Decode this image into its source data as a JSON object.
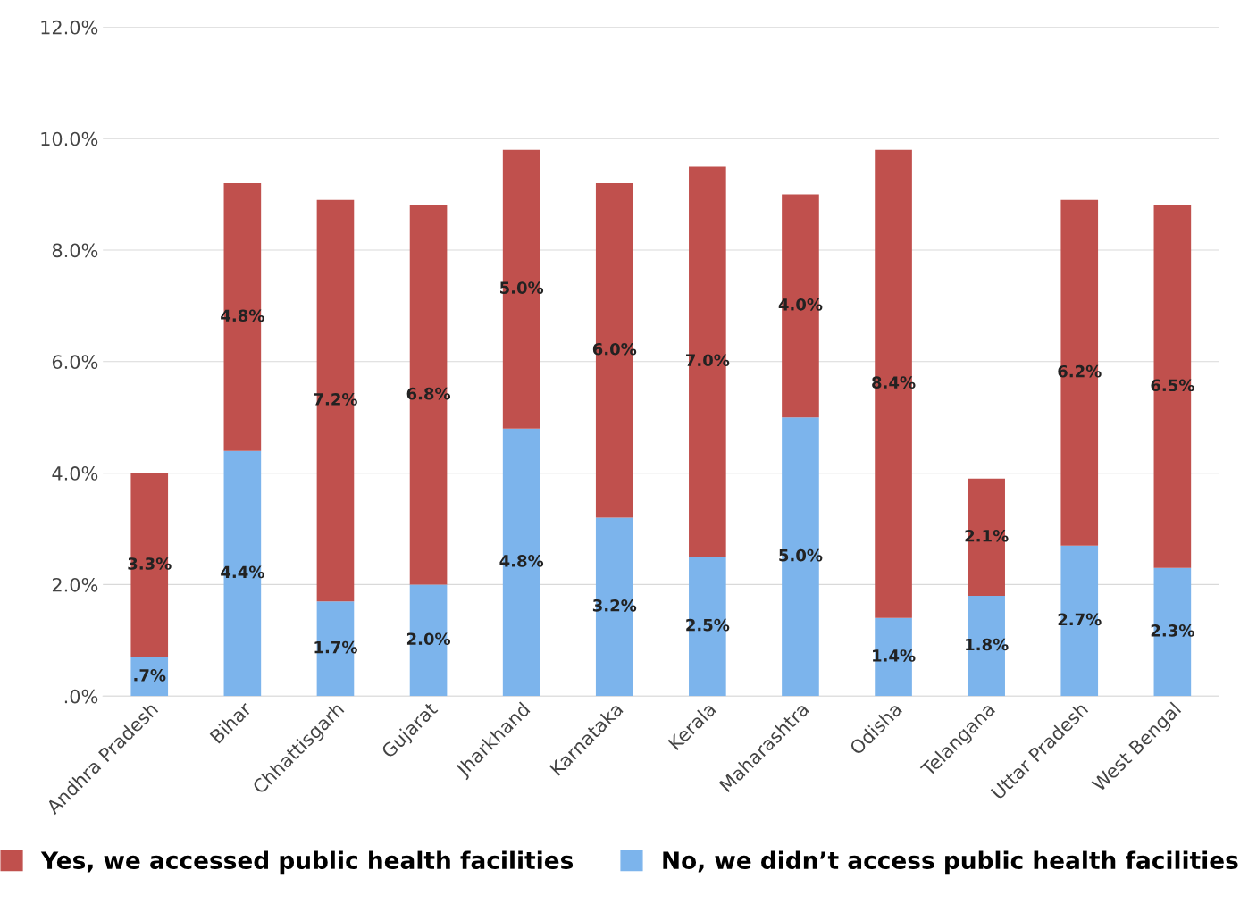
{
  "chart_data": {
    "type": "bar",
    "stacked": true,
    "categories": [
      "Andhra Pradesh",
      "Bihar",
      "Chhattisgarh",
      "Gujarat",
      "Jharkhand",
      "Karnataka",
      "Kerala",
      "Maharashtra",
      "Odisha",
      "Telangana",
      "Uttar Pradesh",
      "West Bengal"
    ],
    "series": [
      {
        "name": "No, we didn’t access public health facilities",
        "color": "#7cb4ec",
        "values": [
          0.7,
          4.4,
          1.7,
          2.0,
          4.8,
          3.2,
          2.5,
          5.0,
          1.4,
          1.8,
          2.7,
          2.3
        ],
        "value_labels": [
          ".7%",
          "4.4%",
          "1.7%",
          "2.0%",
          "4.8%",
          "3.2%",
          "2.5%",
          "5.0%",
          "1.4%",
          "1.8%",
          "2.7%",
          "2.3%"
        ]
      },
      {
        "name": "Yes, we accessed public health facilities",
        "color": "#c0504d",
        "values": [
          3.3,
          4.8,
          7.2,
          6.8,
          5.0,
          6.0,
          7.0,
          4.0,
          8.4,
          2.1,
          6.2,
          6.5
        ],
        "value_labels": [
          "3.3%",
          "4.8%",
          "7.2%",
          "6.8%",
          "5.0%",
          "6.0%",
          "7.0%",
          "4.0%",
          "8.4%",
          "2.1%",
          "6.2%",
          "6.5%"
        ]
      }
    ],
    "ylim": [
      0,
      12
    ],
    "yticks": [
      {
        "value": 0,
        "label": ".0%"
      },
      {
        "value": 2,
        "label": "2.0%"
      },
      {
        "value": 4,
        "label": "4.0%"
      },
      {
        "value": 6,
        "label": "6.0%"
      },
      {
        "value": 8,
        "label": "8.0%"
      },
      {
        "value": 10,
        "label": "10.0%"
      },
      {
        "value": 12,
        "label": "12.0%"
      }
    ],
    "grid": "y",
    "legend": "bottom"
  }
}
